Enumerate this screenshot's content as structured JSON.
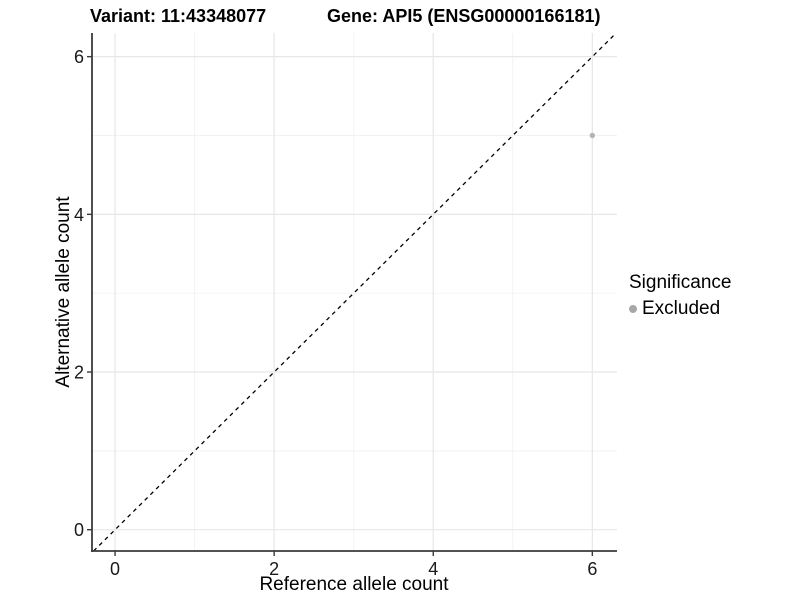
{
  "titles": {
    "variant": "Variant: 11:43348077",
    "gene": "Gene: API5 (ENSG00000166181)"
  },
  "legend": {
    "title": "Significance",
    "items": [
      {
        "label": "Excluded",
        "color": "#a8a8a8"
      }
    ],
    "position": "right"
  },
  "chart_data": {
    "type": "scatter",
    "title": "Variant: 11:43348077   Gene: API5 (ENSG00000166181)",
    "xlabel": "Reference allele count",
    "ylabel": "Alternative allele count",
    "xlim": [
      -0.29,
      6.31
    ],
    "ylim": [
      -0.27,
      6.3
    ],
    "x_ticks": [
      0,
      2,
      4,
      6
    ],
    "y_ticks": [
      0,
      2,
      4,
      6
    ],
    "x_minor_ticks": [
      1,
      3,
      5
    ],
    "y_minor_ticks": [
      1,
      3,
      5
    ],
    "grid": true,
    "reference_line": {
      "type": "identity",
      "equation": "y = x",
      "style": "dashed",
      "color": "#000000"
    },
    "series": [
      {
        "name": "Excluded",
        "color": "#b4b4b4",
        "points": [
          {
            "x": 6,
            "y": 5
          }
        ]
      }
    ],
    "legend_title": "Significance",
    "legend_position": "right",
    "colors": {
      "major_grid": "#e7e7e7",
      "minor_grid": "#f2f2f2",
      "axis_line": "#3a3a3a",
      "tick_text": "#1a1a1a"
    }
  }
}
